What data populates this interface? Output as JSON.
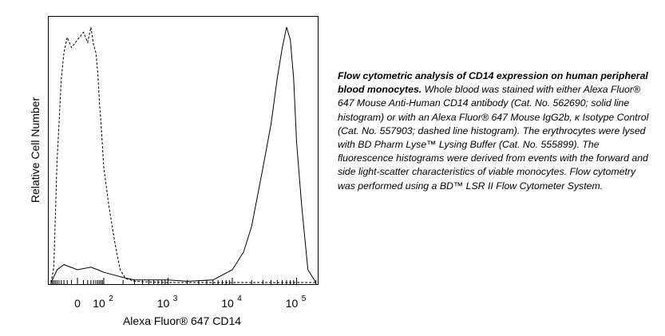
{
  "chart_data": {
    "type": "line",
    "xlabel": "Alexa Fluor® 647 CD14",
    "ylabel": "Relative Cell Number",
    "x_scale": "biexponential",
    "x_tick_labels": [
      {
        "base": "0",
        "exp": ""
      },
      {
        "base": "10",
        "exp": "2"
      },
      {
        "base": "10",
        "exp": "3"
      },
      {
        "base": "10",
        "exp": "4"
      },
      {
        "base": "10",
        "exp": "5"
      }
    ],
    "y_ticks_shown": false,
    "legend": "none",
    "series": [
      {
        "style": "dashed",
        "x": [
          -100,
          -80,
          -60,
          -50,
          -40,
          -30,
          -20,
          -10,
          0,
          10,
          20,
          30,
          40,
          50,
          60,
          70,
          80,
          100,
          120,
          150,
          180,
          220,
          260,
          300,
          400,
          1000,
          10000,
          100000,
          200000
        ],
        "y": [
          0.0,
          0.06,
          0.48,
          0.62,
          0.8,
          0.9,
          0.96,
          0.92,
          0.95,
          0.98,
          0.94,
          1.0,
          0.93,
          0.9,
          0.82,
          0.7,
          0.62,
          0.45,
          0.3,
          0.15,
          0.05,
          0.015,
          0.01,
          0.005,
          0.003,
          0.0,
          0.0,
          0.0,
          0.0
        ]
      },
      {
        "style": "solid",
        "x": [
          -100,
          -60,
          -30,
          0,
          30,
          60,
          100,
          200,
          300,
          500,
          1000,
          2000,
          5000,
          10000,
          15000,
          20000,
          30000,
          40000,
          50000,
          60000,
          70000,
          80000,
          90000,
          100000,
          120000,
          150000,
          200000
        ],
        "y": [
          0.0,
          0.05,
          0.07,
          0.05,
          0.06,
          0.05,
          0.04,
          0.02,
          0.01,
          0.01,
          0.01,
          0.005,
          0.01,
          0.05,
          0.12,
          0.22,
          0.45,
          0.62,
          0.8,
          0.92,
          1.0,
          0.95,
          0.8,
          0.55,
          0.3,
          0.05,
          0.0
        ]
      }
    ]
  },
  "caption": {
    "bold": "Flow cytometric analysis of CD14 expression on human peripheral blood monocytes.",
    "text": " Whole blood was stained with either Alexa Fluor® 647 Mouse Anti-Human CD14 antibody (Cat. No. 562690; solid line histogram) or with an Alexa Fluor® 647 Mouse IgG2b, κ Isotype Control (Cat. No. 557903; dashed line histogram). The erythrocytes were lysed with BD Pharm Lyse™ Lysing Buffer (Cat. No. 555899). The fluorescence histograms were derived from events with the forward and side light-scatter characteristics of viable monocytes. Flow cytometry was performed using a BD™ LSR II Flow Cytometer System."
  }
}
